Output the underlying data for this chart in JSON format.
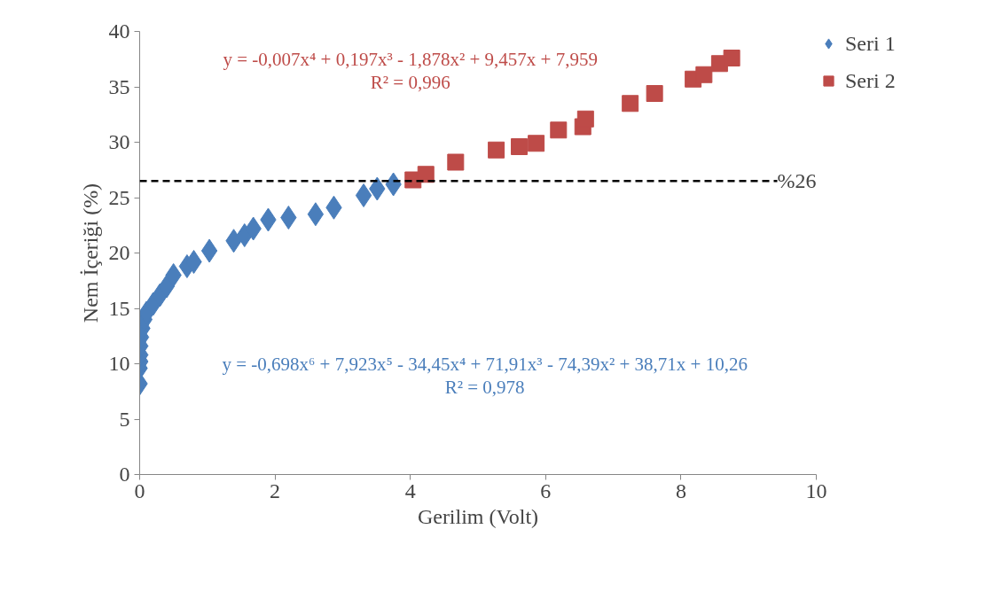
{
  "chart_data": {
    "type": "scatter",
    "xlabel": "Gerilim (Volt)",
    "ylabel": "Nem İçeriği (%)",
    "xlim": [
      0,
      10
    ],
    "xticks": [
      0,
      2,
      4,
      6,
      8,
      10
    ],
    "ylim": [
      0,
      40
    ],
    "yticks": [
      0,
      5,
      10,
      15,
      20,
      25,
      30,
      35,
      40
    ],
    "grid": false,
    "legend": "right",
    "series": [
      {
        "name": "Seri 1",
        "color": "#4a7ebb",
        "marker": "diamond",
        "x": [
          0,
          0,
          0.01,
          0.01,
          0.01,
          0.02,
          0.04,
          0.07,
          0.1,
          0.2,
          0.3,
          0.4,
          0.5,
          0.7,
          0.8,
          1.03,
          1.39,
          1.55,
          1.68,
          1.9,
          2.2,
          2.6,
          2.87,
          3.31,
          3.51,
          3.75
        ],
        "values": [
          8.2,
          9.6,
          10.2,
          10.8,
          11.6,
          12.4,
          13.2,
          14,
          14.6,
          15.4,
          16.2,
          17,
          18,
          18.8,
          19.2,
          20.2,
          21.1,
          21.6,
          22.2,
          23,
          23.2,
          23.5,
          24.1,
          25.2,
          25.8,
          26.2
        ]
      },
      {
        "name": "Seri 2",
        "color": "#be4b48",
        "marker": "square",
        "x": [
          4.04,
          4.23,
          4.67,
          5.27,
          5.61,
          5.86,
          6.19,
          6.55,
          6.59,
          7.25,
          7.61,
          8.18,
          8.34,
          8.57,
          8.75
        ],
        "values": [
          26.6,
          27.1,
          28.2,
          29.3,
          29.6,
          29.9,
          31.1,
          31.4,
          32.1,
          33.5,
          34.4,
          35.7,
          36.1,
          37.1,
          37.6
        ]
      }
    ],
    "ref_lines": [
      {
        "axis": "y",
        "value": 26.5,
        "label": "%26",
        "color": "#000000",
        "line_style": "dashed"
      }
    ],
    "annotations": [
      "y = -0,698x⁶ + 7,923x⁵ - 34,45x⁴ + 71,91x³ - 74,39x² + 38,71x + 10,26\nR² = 0,978",
      "y = -0,007x⁴ + 0,197x³ - 1,878x² + 9,457x + 7,959\nR² = 0,996"
    ]
  }
}
